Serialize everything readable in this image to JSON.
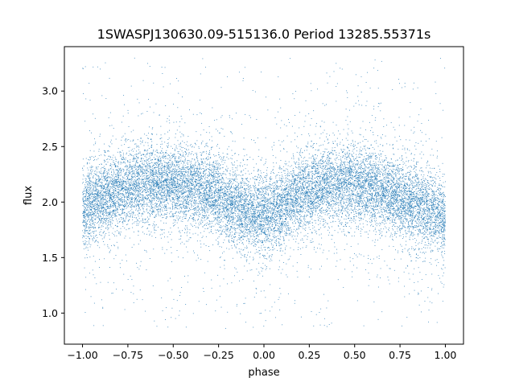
{
  "chart_data": {
    "type": "scatter",
    "title": "1SWASPJ130630.09-515136.0 Period 13285.55371s",
    "xlabel": "phase",
    "ylabel": "flux",
    "xlim": [
      -1.1,
      1.1
    ],
    "ylim": [
      0.72,
      3.4
    ],
    "x_ticks": [
      -1.0,
      -0.75,
      -0.5,
      -0.25,
      0.0,
      0.25,
      0.5,
      0.75,
      1.0
    ],
    "x_tick_labels": [
      "−1.00",
      "−0.75",
      "−0.50",
      "−0.25",
      "0.00",
      "0.25",
      "0.50",
      "0.75",
      "1.00"
    ],
    "y_ticks": [
      1.0,
      1.5,
      2.0,
      2.5,
      3.0
    ],
    "y_tick_labels": [
      "1.0",
      "1.5",
      "2.0",
      "2.5",
      "3.0"
    ],
    "grid": false,
    "legend": "none",
    "marker_color": "#1f77b4",
    "phase_range": [
      -1.0,
      1.0
    ],
    "flux_profile": {
      "phase": [
        -1.0,
        -0.9,
        -0.8,
        -0.7,
        -0.6,
        -0.5,
        -0.4,
        -0.3,
        -0.2,
        -0.1,
        0.0,
        0.1,
        0.2,
        0.3,
        0.4,
        0.5,
        0.6,
        0.7,
        0.8,
        0.9,
        1.0
      ],
      "flux": [
        1.93,
        2.02,
        2.1,
        2.15,
        2.18,
        2.17,
        2.13,
        2.08,
        2.0,
        1.9,
        1.88,
        1.96,
        2.07,
        2.14,
        2.17,
        2.16,
        2.12,
        2.08,
        2.0,
        1.93,
        1.88
      ]
    },
    "scatter_sigma": 0.17,
    "outlier_flux_range": [
      0.85,
      3.3
    ],
    "n_points": 16000
  }
}
